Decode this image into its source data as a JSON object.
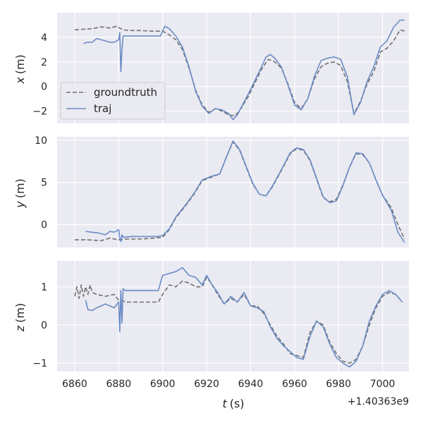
{
  "chart_data": [
    {
      "type": "line",
      "ylabel_var": "x",
      "ylabel_unit": "(m)",
      "xlim": [
        6852,
        7012
      ],
      "ylim": [
        -3,
        6
      ],
      "xticks": [
        6860,
        6880,
        6900,
        6920,
        6940,
        6960,
        6980,
        7000
      ],
      "yticks": [
        -2,
        0,
        2,
        4
      ],
      "grid": true,
      "legend": {
        "placement": "lower-left",
        "entries": [
          "groundtruth",
          "traj"
        ]
      },
      "series": [
        {
          "name": "groundtruth",
          "style": "dashed",
          "color": "#707070",
          "x": [
            6860,
            6864,
            6868,
            6872,
            6876,
            6879,
            6882,
            6886,
            6890,
            6895,
            6900,
            6903,
            6906,
            6909,
            6912,
            6915,
            6918,
            6921,
            6924,
            6927,
            6930,
            6933,
            6936,
            6939,
            6942,
            6945,
            6948,
            6951,
            6954,
            6957,
            6960,
            6963,
            6966,
            6969,
            6972,
            6975,
            6978,
            6981,
            6984,
            6987,
            6990,
            6993,
            6996,
            6999,
            7002,
            7005,
            7008,
            7010
          ],
          "y": [
            4.6,
            4.65,
            4.7,
            4.85,
            4.75,
            4.9,
            4.6,
            4.55,
            4.55,
            4.5,
            4.5,
            4.2,
            3.8,
            3.0,
            1.5,
            -0.3,
            -1.5,
            -2.1,
            -1.8,
            -2.0,
            -2.3,
            -2.4,
            -1.7,
            -0.8,
            0.3,
            1.4,
            2.2,
            2.0,
            1.5,
            0.2,
            -1.3,
            -1.8,
            -1.0,
            0.6,
            1.6,
            1.9,
            2.0,
            1.7,
            0.4,
            -2.2,
            -1.2,
            0.2,
            1.2,
            2.8,
            3.1,
            3.7,
            4.6,
            4.5
          ]
        },
        {
          "name": "traj",
          "style": "solid",
          "color": "#6b8cc6",
          "x": [
            6864,
            6866,
            6868,
            6870,
            6872,
            6874,
            6876,
            6878,
            6880,
            6880.5,
            6881,
            6881.5,
            6882,
            6884,
            6888,
            6892,
            6896,
            6899,
            6901,
            6903,
            6906,
            6909,
            6912,
            6915,
            6918,
            6921,
            6924,
            6927,
            6930,
            6932,
            6934,
            6936,
            6939,
            6942,
            6945,
            6947,
            6949,
            6951,
            6954,
            6957,
            6960,
            6963,
            6966,
            6969,
            6972,
            6975,
            6978,
            6981,
            6984,
            6987,
            6990,
            6993,
            6996,
            6999,
            7002,
            7005,
            7008,
            7010
          ],
          "y": [
            3.5,
            3.6,
            3.6,
            3.9,
            3.8,
            3.7,
            3.6,
            3.6,
            3.8,
            4.4,
            1.2,
            3.0,
            4.1,
            4.1,
            4.1,
            4.1,
            4.1,
            4.1,
            4.9,
            4.7,
            4.1,
            3.2,
            1.6,
            -0.4,
            -1.6,
            -2.2,
            -1.8,
            -1.9,
            -2.2,
            -2.7,
            -2.3,
            -1.6,
            -0.6,
            0.5,
            1.6,
            2.4,
            2.6,
            2.3,
            1.6,
            0.1,
            -1.5,
            -1.9,
            -1.0,
            0.8,
            2.1,
            2.3,
            2.4,
            2.2,
            0.8,
            -2.3,
            -1.3,
            0.4,
            1.6,
            3.2,
            3.7,
            4.8,
            5.4,
            5.4
          ]
        }
      ]
    },
    {
      "type": "line",
      "ylabel_var": "y",
      "ylabel_unit": "(m)",
      "xlim": [
        6852,
        7012
      ],
      "ylim": [
        -2.7,
        10.4
      ],
      "xticks": [
        6860,
        6880,
        6900,
        6920,
        6940,
        6960,
        6980,
        7000
      ],
      "yticks": [
        0,
        5,
        10
      ],
      "grid": true,
      "series": [
        {
          "name": "groundtruth",
          "style": "dashed",
          "color": "#707070",
          "x": [
            6860,
            6866,
            6872,
            6876,
            6880,
            6884,
            6890,
            6896,
            6900,
            6903,
            6906,
            6910,
            6914,
            6918,
            6922,
            6926,
            6929,
            6932,
            6935,
            6938,
            6941,
            6944,
            6947,
            6950,
            6954,
            6958,
            6961,
            6964,
            6967,
            6970,
            6973,
            6976,
            6979,
            6982,
            6985,
            6988,
            6991,
            6994,
            6997,
            7000,
            7004,
            7007,
            7010
          ],
          "y": [
            -1.8,
            -1.8,
            -1.9,
            -1.6,
            -1.8,
            -1.7,
            -1.7,
            -1.6,
            -1.5,
            -0.6,
            0.8,
            2.1,
            3.5,
            5.2,
            5.6,
            6.0,
            8.0,
            9.8,
            8.8,
            6.8,
            4.8,
            3.6,
            3.4,
            4.5,
            6.4,
            8.4,
            9.0,
            8.8,
            7.6,
            5.4,
            3.2,
            2.7,
            3.0,
            4.7,
            6.8,
            8.4,
            8.3,
            7.3,
            5.3,
            3.5,
            2.0,
            0.0,
            -1.7
          ]
        },
        {
          "name": "traj",
          "style": "solid",
          "color": "#6b8cc6",
          "x": [
            6865,
            6868,
            6871,
            6874,
            6876,
            6878,
            6880,
            6880.5,
            6881,
            6881.5,
            6882,
            6886,
            6892,
            6898,
            6900,
            6903,
            6906,
            6910,
            6914,
            6918,
            6922,
            6926,
            6929,
            6932,
            6935,
            6938,
            6941,
            6944,
            6947,
            6950,
            6954,
            6958,
            6961,
            6964,
            6967,
            6970,
            6973,
            6976,
            6979,
            6982,
            6985,
            6988,
            6991,
            6994,
            6997,
            7000,
            7004,
            7007,
            7010
          ],
          "y": [
            -0.8,
            -0.9,
            -1.0,
            -1.2,
            -0.8,
            -0.9,
            -0.6,
            -1.6,
            -2.0,
            -1.2,
            -1.5,
            -1.4,
            -1.4,
            -1.4,
            -1.3,
            -0.5,
            0.9,
            2.2,
            3.6,
            5.3,
            5.7,
            6.0,
            8.0,
            9.9,
            8.9,
            6.9,
            4.9,
            3.6,
            3.4,
            4.6,
            6.5,
            8.5,
            9.1,
            8.9,
            7.7,
            5.5,
            3.3,
            2.6,
            2.8,
            4.6,
            6.8,
            8.5,
            8.4,
            7.3,
            5.3,
            3.5,
            1.7,
            -0.9,
            -2.1
          ]
        }
      ]
    },
    {
      "type": "line",
      "ylabel_var": "z",
      "ylabel_unit": "(m)",
      "xlabel_var": "t",
      "xlabel_unit": "(s)",
      "xoffset": "+1.40363e9",
      "xlim": [
        6852,
        7012
      ],
      "ylim": [
        -1.22,
        1.68
      ],
      "xticks": [
        6860,
        6880,
        6900,
        6920,
        6940,
        6960,
        6980,
        7000
      ],
      "yticks": [
        -1,
        0,
        1
      ],
      "grid": true,
      "series": [
        {
          "name": "groundtruth",
          "style": "dashed",
          "color": "#707070",
          "x": [
            6860,
            6861,
            6862,
            6863,
            6864,
            6865,
            6866,
            6867,
            6868,
            6870,
            6874,
            6878,
            6880,
            6884,
            6890,
            6898,
            6900,
            6903,
            6906,
            6909,
            6912,
            6915,
            6918,
            6920,
            6922,
            6925,
            6928,
            6931,
            6934,
            6937,
            6940,
            6943,
            6946,
            6949,
            6952,
            6955,
            6958,
            6961,
            6964,
            6967,
            6970,
            6973,
            6976,
            6979,
            6982,
            6985,
            6988,
            6991,
            6994,
            6997,
            7000,
            7003,
            7006,
            7009
          ],
          "y": [
            0.75,
            1.0,
            0.7,
            1.05,
            0.75,
            1.0,
            0.8,
            1.05,
            0.85,
            0.8,
            0.75,
            0.8,
            0.65,
            0.6,
            0.6,
            0.6,
            0.8,
            1.05,
            1.0,
            1.15,
            1.1,
            1.0,
            1.0,
            1.25,
            1.1,
            0.8,
            0.55,
            0.7,
            0.6,
            0.8,
            0.5,
            0.5,
            0.3,
            0.0,
            -0.3,
            -0.5,
            -0.75,
            -0.8,
            -0.85,
            -0.2,
            0.1,
            0.0,
            -0.45,
            -0.75,
            -0.95,
            -1.0,
            -0.9,
            -0.55,
            0.0,
            0.45,
            0.75,
            0.85,
            0.8,
            0.6
          ]
        },
        {
          "name": "traj",
          "style": "solid",
          "color": "#6b8cc6",
          "x": [
            6865,
            6866,
            6868,
            6870,
            6872,
            6874,
            6876,
            6878,
            6880,
            6880.5,
            6881,
            6881.5,
            6882,
            6883,
            6886,
            6892,
            6898,
            6900,
            6903,
            6906,
            6909,
            6912,
            6915,
            6918,
            6920,
            6922,
            6925,
            6928,
            6931,
            6934,
            6937,
            6940,
            6943,
            6946,
            6949,
            6952,
            6955,
            6958,
            6961,
            6964,
            6967,
            6970,
            6973,
            6976,
            6979,
            6982,
            6985,
            6988,
            6991,
            6994,
            6997,
            7000,
            7003,
            7006,
            7009
          ],
          "y": [
            0.65,
            0.4,
            0.38,
            0.45,
            0.5,
            0.55,
            0.5,
            0.45,
            0.6,
            -0.18,
            0.9,
            0.05,
            0.95,
            0.9,
            0.9,
            0.9,
            0.9,
            1.3,
            1.35,
            1.4,
            1.5,
            1.3,
            1.25,
            1.05,
            1.3,
            1.1,
            0.85,
            0.55,
            0.75,
            0.6,
            0.85,
            0.5,
            0.45,
            0.35,
            -0.05,
            -0.35,
            -0.55,
            -0.7,
            -0.85,
            -0.9,
            -0.3,
            0.1,
            -0.05,
            -0.5,
            -0.85,
            -1.0,
            -1.1,
            -0.95,
            -0.55,
            0.1,
            0.5,
            0.8,
            0.9,
            0.8,
            0.6
          ]
        }
      ]
    }
  ]
}
